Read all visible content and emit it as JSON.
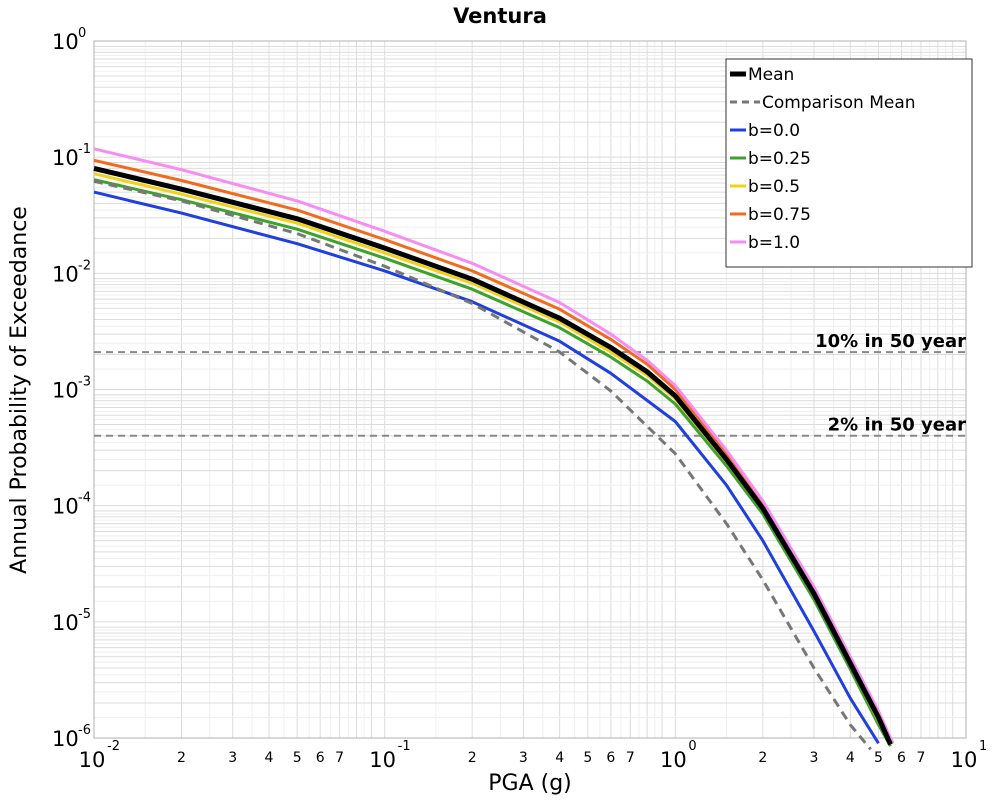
{
  "chart_data": {
    "type": "line",
    "title": "Ventura",
    "xlabel": "PGA (g)",
    "ylabel": "Annual Probability of Exceedance",
    "x_scale": "log",
    "y_scale": "log",
    "xlim": [
      0.01,
      10
    ],
    "ylim": [
      1e-06,
      1
    ],
    "grid": true,
    "legend_position": "top-right",
    "x_ticks": [
      {
        "value": 0.01,
        "base": "10",
        "exp": "-2"
      },
      {
        "value": 0.1,
        "base": "10",
        "exp": "-1"
      },
      {
        "value": 1,
        "base": "10",
        "exp": "0"
      },
      {
        "value": 10,
        "base": "10",
        "exp": "1"
      }
    ],
    "x_minor_labels": [
      "2",
      "3",
      "4",
      "5",
      "6",
      "7"
    ],
    "y_ticks": [
      {
        "value": 1,
        "base": "10",
        "exp": "0"
      },
      {
        "value": 0.1,
        "base": "10",
        "exp": "-1"
      },
      {
        "value": 0.01,
        "base": "10",
        "exp": "-2"
      },
      {
        "value": 0.001,
        "base": "10",
        "exp": "-3"
      },
      {
        "value": 0.0001,
        "base": "10",
        "exp": "-4"
      },
      {
        "value": 1e-05,
        "base": "10",
        "exp": "-5"
      },
      {
        "value": 1e-06,
        "base": "10",
        "exp": "-6"
      }
    ],
    "reference_lines": [
      {
        "label": "10% in 50 year",
        "y": 0.0021
      },
      {
        "label": "2% in 50 year",
        "y": 0.0004
      }
    ],
    "series": [
      {
        "name": "b=0.0",
        "color": "#1f3fe0",
        "dash": "solid",
        "width": 3,
        "x": [
          0.01,
          0.02,
          0.05,
          0.1,
          0.2,
          0.4,
          0.6,
          1.0,
          1.5,
          2.0,
          3.0,
          4.0,
          5.0
        ],
        "y": [
          0.05,
          0.033,
          0.018,
          0.0105,
          0.0057,
          0.0026,
          0.00138,
          0.00053,
          0.00015,
          5e-05,
          8.3e-06,
          2.2e-06,
          9e-07
        ]
      },
      {
        "name": "b=0.25",
        "color": "#3ca22b",
        "dash": "solid",
        "width": 3,
        "x": [
          0.01,
          0.02,
          0.05,
          0.1,
          0.2,
          0.4,
          0.6,
          0.8,
          1.0,
          1.5,
          2.0,
          3.0,
          4.0,
          5.0,
          5.5
        ],
        "y": [
          0.064,
          0.043,
          0.024,
          0.0135,
          0.0073,
          0.0034,
          0.0019,
          0.00118,
          0.00075,
          0.00022,
          8.5e-05,
          1.55e-05,
          3.9e-06,
          1.3e-06,
          8.5e-07
        ]
      },
      {
        "name": "b=0.5",
        "color": "#f0d21b",
        "dash": "solid",
        "width": 3,
        "x": [
          0.01,
          0.02,
          0.05,
          0.1,
          0.2,
          0.4,
          0.6,
          0.8,
          1.0,
          1.5,
          2.0,
          3.0,
          4.0,
          5.0,
          5.5
        ],
        "y": [
          0.072,
          0.048,
          0.027,
          0.015,
          0.0082,
          0.0038,
          0.0021,
          0.00132,
          0.00083,
          0.00024,
          9.2e-05,
          1.7e-05,
          4.3e-06,
          1.4e-06,
          9e-07
        ]
      },
      {
        "name": "b=0.75",
        "color": "#f26b1d",
        "dash": "solid",
        "width": 3,
        "x": [
          0.01,
          0.02,
          0.05,
          0.1,
          0.2,
          0.4,
          0.6,
          0.8,
          1.0,
          1.5,
          2.0,
          3.0,
          4.0,
          5.0,
          5.6
        ],
        "y": [
          0.094,
          0.063,
          0.035,
          0.0195,
          0.0105,
          0.0049,
          0.0027,
          0.00165,
          0.001,
          0.00028,
          0.000105,
          1.92e-05,
          4.8e-06,
          1.6e-06,
          9e-07
        ]
      },
      {
        "name": "b=1.0",
        "color": "#f78cf2",
        "dash": "solid",
        "width": 3,
        "x": [
          0.01,
          0.02,
          0.05,
          0.1,
          0.2,
          0.4,
          0.6,
          0.8,
          1.0,
          1.5,
          2.0,
          3.0,
          4.0,
          5.0,
          5.6
        ],
        "y": [
          0.118,
          0.078,
          0.042,
          0.023,
          0.0122,
          0.0056,
          0.003,
          0.00178,
          0.00108,
          0.0003,
          0.00011,
          2e-05,
          5e-06,
          1.7e-06,
          9e-07
        ]
      },
      {
        "name": "Comparison Mean",
        "color": "#777777",
        "dash": "dashed",
        "width": 3,
        "x": [
          0.01,
          0.02,
          0.05,
          0.1,
          0.2,
          0.4,
          0.6,
          1.0,
          1.5,
          2.0,
          3.0,
          4.0,
          4.7
        ],
        "y": [
          0.062,
          0.042,
          0.022,
          0.0115,
          0.0055,
          0.0021,
          0.00097,
          0.00028,
          7e-05,
          2.3e-05,
          4e-06,
          1.3e-06,
          8e-07
        ]
      },
      {
        "name": "Mean",
        "color": "#000000",
        "dash": "solid",
        "width": 5,
        "x": [
          0.01,
          0.02,
          0.05,
          0.1,
          0.2,
          0.4,
          0.6,
          0.8,
          1.0,
          1.5,
          2.0,
          3.0,
          4.0,
          5.0,
          5.5
        ],
        "y": [
          0.08,
          0.053,
          0.0295,
          0.0165,
          0.0089,
          0.0041,
          0.0023,
          0.00142,
          0.00088,
          0.00025,
          9.5e-05,
          1.75e-05,
          4.4e-06,
          1.5e-06,
          8.8e-07
        ]
      }
    ],
    "legend_order": [
      "Mean",
      "Comparison Mean",
      "b=0.0",
      "b=0.25",
      "b=0.5",
      "b=0.75",
      "b=1.0"
    ]
  }
}
